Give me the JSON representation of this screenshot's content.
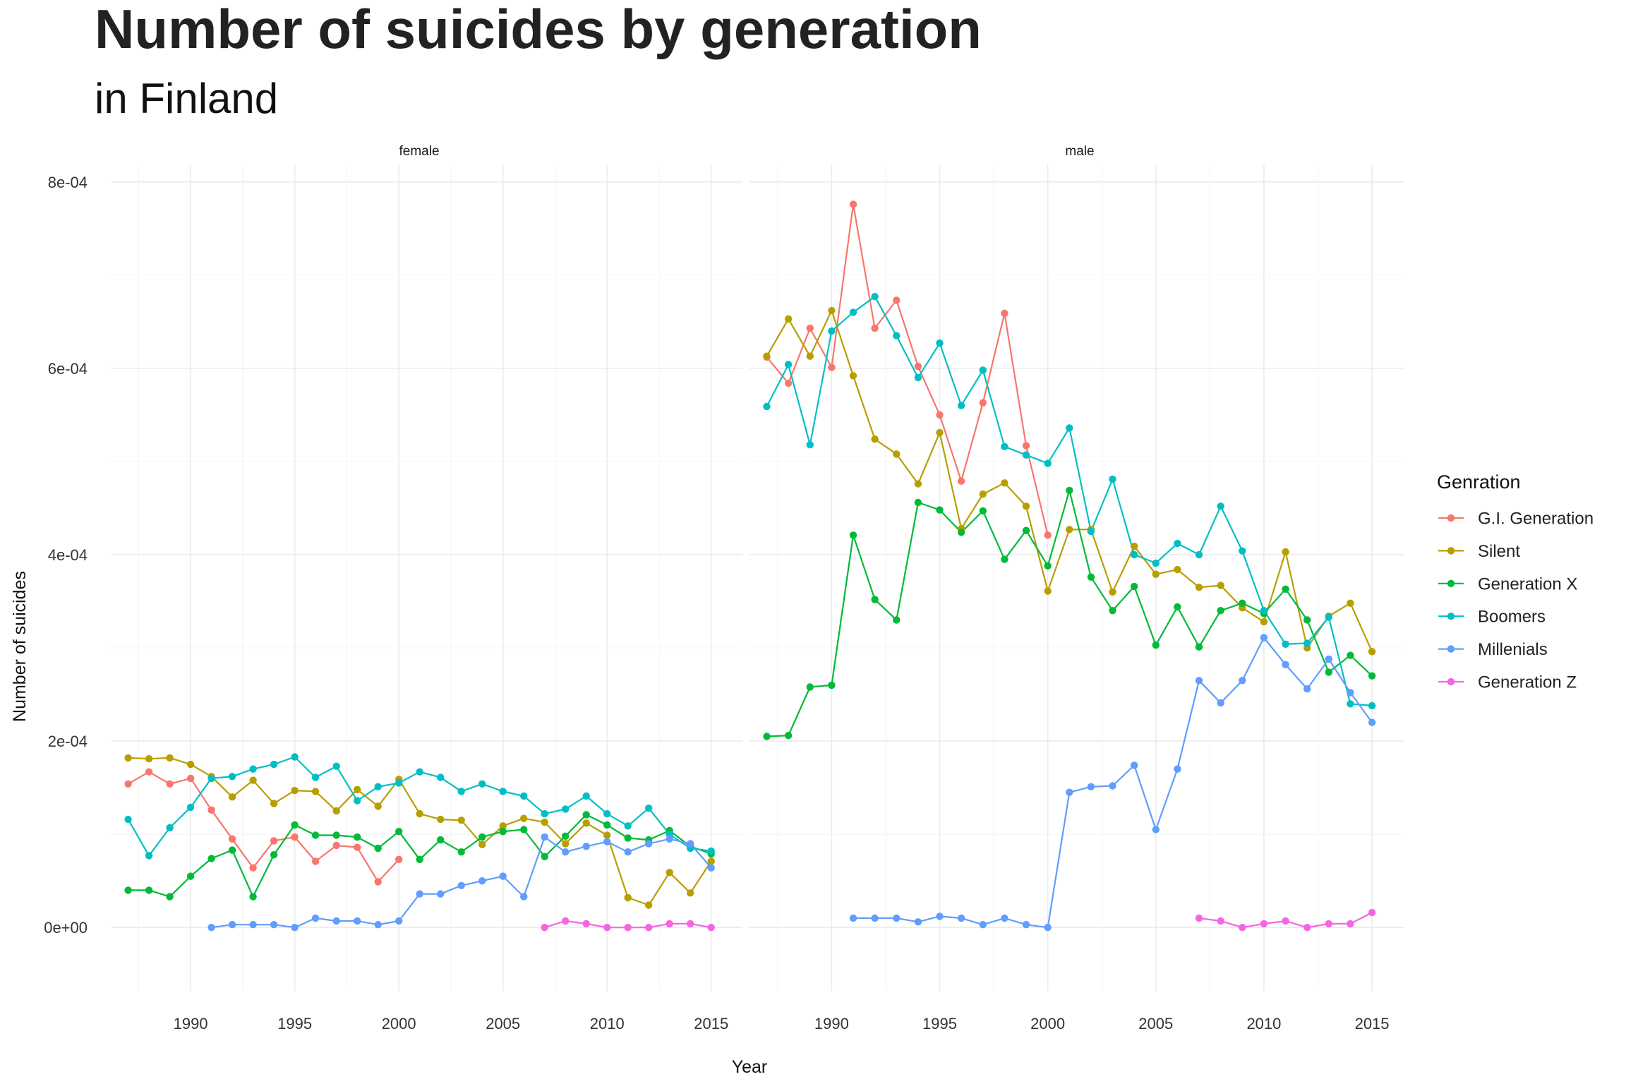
{
  "chart_data": {
    "type": "line",
    "title": "Number of suicides by generation",
    "subtitle": "in Finland",
    "xlabel": "Year",
    "ylabel": "Number of suicides",
    "legend_title": "Genration",
    "legend_position": "right",
    "grid": true,
    "xlim": [
      1986.2,
      2016.5
    ],
    "ylim": [
      -6.8e-05,
      0.000818
    ],
    "x_ticks": [
      1990,
      1995,
      2000,
      2005,
      2010,
      2015
    ],
    "x_tick_labels": [
      "1990",
      "1995",
      "2000",
      "2005",
      "2010",
      "2015"
    ],
    "y_ticks": [
      0,
      0.0002,
      0.0004,
      0.0006,
      0.0008
    ],
    "y_tick_labels": [
      "0e+00",
      "2e-04",
      "4e-04",
      "6e-04",
      "8e-04"
    ],
    "series_colors": {
      "G.I. Generation": "#F8766D",
      "Silent": "#B79F00",
      "Generation X": "#00BA38",
      "Boomers": "#00BFC4",
      "Millenials": "#619CFF",
      "Generation Z": "#F564E3"
    },
    "legend": [
      "G.I. Generation",
      "Silent",
      "Generation X",
      "Boomers",
      "Millenials",
      "Generation Z"
    ],
    "panels": [
      {
        "label": "female",
        "series": [
          {
            "name": "G.I. Generation",
            "x": [
              1987,
              1988,
              1989,
              1990,
              1991,
              1992,
              1993,
              1994,
              1995,
              1996,
              1997,
              1998,
              1999,
              2000
            ],
            "y": [
              0.000154,
              0.000167,
              0.000154,
              0.00016,
              0.000126,
              9.5e-05,
              6.4e-05,
              9.3e-05,
              9.7e-05,
              7.1e-05,
              8.8e-05,
              8.6e-05,
              4.9e-05,
              7.3e-05
            ]
          },
          {
            "name": "Silent",
            "x": [
              1987,
              1988,
              1989,
              1990,
              1991,
              1992,
              1993,
              1994,
              1995,
              1996,
              1997,
              1998,
              1999,
              2000,
              2001,
              2002,
              2003,
              2004,
              2005,
              2006,
              2007,
              2008,
              2009,
              2010,
              2011,
              2012,
              2013,
              2014,
              2015
            ],
            "y": [
              0.000182,
              0.000181,
              0.000182,
              0.000175,
              0.000162,
              0.00014,
              0.000158,
              0.000133,
              0.000147,
              0.000146,
              0.000125,
              0.000148,
              0.00013,
              0.000159,
              0.000122,
              0.000116,
              0.000115,
              8.9e-05,
              0.000109,
              0.000117,
              0.000113,
              9e-05,
              0.000112,
              9.9e-05,
              3.2e-05,
              2.4e-05,
              5.9e-05,
              3.7e-05,
              7.1e-05
            ]
          },
          {
            "name": "Generation X",
            "x": [
              1987,
              1988,
              1989,
              1990,
              1991,
              1992,
              1993,
              1994,
              1995,
              1996,
              1997,
              1998,
              1999,
              2000,
              2001,
              2002,
              2003,
              2004,
              2005,
              2006,
              2007,
              2008,
              2009,
              2010,
              2011,
              2012,
              2013,
              2014,
              2015
            ],
            "y": [
              4e-05,
              4e-05,
              3.3e-05,
              5.5e-05,
              7.4e-05,
              8.3e-05,
              3.3e-05,
              7.8e-05,
              0.00011,
              9.9e-05,
              9.9e-05,
              9.7e-05,
              8.5e-05,
              0.000103,
              7.3e-05,
              9.4e-05,
              8.1e-05,
              9.7e-05,
              0.000103,
              0.000105,
              7.6e-05,
              9.8e-05,
              0.000121,
              0.00011,
              9.6e-05,
              9.4e-05,
              0.000104,
              8.7e-05,
              7.9e-05
            ]
          },
          {
            "name": "Boomers",
            "x": [
              1987,
              1988,
              1989,
              1990,
              1991,
              1992,
              1993,
              1994,
              1995,
              1996,
              1997,
              1998,
              1999,
              2000,
              2001,
              2002,
              2003,
              2004,
              2005,
              2006,
              2007,
              2008,
              2009,
              2010,
              2011,
              2012,
              2013,
              2014,
              2015
            ],
            "y": [
              0.000116,
              7.7e-05,
              0.000107,
              0.000129,
              0.00016,
              0.000162,
              0.00017,
              0.000175,
              0.000183,
              0.000161,
              0.000173,
              0.000136,
              0.000151,
              0.000155,
              0.000167,
              0.000161,
              0.000146,
              0.000154,
              0.000146,
              0.000141,
              0.000122,
              0.000127,
              0.000141,
              0.000122,
              0.000109,
              0.000128,
              0.0001,
              8.5e-05,
              8.2e-05
            ]
          },
          {
            "name": "Millenials",
            "x": [
              1991,
              1992,
              1993,
              1994,
              1995,
              1996,
              1997,
              1998,
              1999,
              2000,
              2001,
              2002,
              2003,
              2004,
              2005,
              2006,
              2007,
              2008,
              2009,
              2010,
              2011,
              2012,
              2013,
              2014,
              2015
            ],
            "y": [
              0,
              3e-06,
              3e-06,
              3e-06,
              0,
              1e-05,
              7e-06,
              7e-06,
              3e-06,
              7e-06,
              3.6e-05,
              3.6e-05,
              4.5e-05,
              5e-05,
              5.5e-05,
              3.3e-05,
              9.7e-05,
              8.1e-05,
              8.7e-05,
              9.2e-05,
              8.1e-05,
              9e-05,
              9.5e-05,
              9e-05,
              6.4e-05
            ]
          },
          {
            "name": "Generation Z",
            "x": [
              2007,
              2008,
              2009,
              2010,
              2011,
              2012,
              2013,
              2014,
              2015
            ],
            "y": [
              0,
              7e-06,
              4e-06,
              0,
              0,
              0,
              4e-06,
              4e-06,
              0
            ]
          }
        ]
      },
      {
        "label": "male",
        "series": [
          {
            "name": "G.I. Generation",
            "x": [
              1987,
              1988,
              1989,
              1990,
              1991,
              1992,
              1993,
              1994,
              1995,
              1996,
              1997,
              1998,
              1999,
              2000
            ],
            "y": [
              0.000612,
              0.000584,
              0.000643,
              0.000601,
              0.000776,
              0.000643,
              0.000673,
              0.000602,
              0.00055,
              0.000479,
              0.000563,
              0.000659,
              0.000517,
              0.000421
            ]
          },
          {
            "name": "Silent",
            "x": [
              1987,
              1988,
              1989,
              1990,
              1991,
              1992,
              1993,
              1994,
              1995,
              1996,
              1997,
              1998,
              1999,
              2000,
              2001,
              2002,
              2003,
              2004,
              2005,
              2006,
              2007,
              2008,
              2009,
              2010,
              2011,
              2012,
              2013,
              2014,
              2015
            ],
            "y": [
              0.000613,
              0.000653,
              0.000613,
              0.000662,
              0.000592,
              0.000524,
              0.000508,
              0.000476,
              0.000531,
              0.000428,
              0.000465,
              0.000477,
              0.000452,
              0.000361,
              0.000427,
              0.000427,
              0.00036,
              0.000409,
              0.000379,
              0.000384,
              0.000365,
              0.000367,
              0.000343,
              0.000328,
              0.000403,
              0.0003,
              0.000334,
              0.000348,
              0.000296
            ]
          },
          {
            "name": "Generation X",
            "x": [
              1987,
              1988,
              1989,
              1990,
              1991,
              1992,
              1993,
              1994,
              1995,
              1996,
              1997,
              1998,
              1999,
              2000,
              2001,
              2002,
              2003,
              2004,
              2005,
              2006,
              2007,
              2008,
              2009,
              2010,
              2011,
              2012,
              2013,
              2014,
              2015
            ],
            "y": [
              0.000205,
              0.000206,
              0.000258,
              0.00026,
              0.000421,
              0.000352,
              0.00033,
              0.000456,
              0.000448,
              0.000424,
              0.000447,
              0.000395,
              0.000426,
              0.000388,
              0.000469,
              0.000376,
              0.00034,
              0.000366,
              0.000303,
              0.000344,
              0.000301,
              0.00034,
              0.000348,
              0.000337,
              0.000363,
              0.00033,
              0.000274,
              0.000292,
              0.00027
            ]
          },
          {
            "name": "Boomers",
            "x": [
              1987,
              1988,
              1989,
              1990,
              1991,
              1992,
              1993,
              1994,
              1995,
              1996,
              1997,
              1998,
              1999,
              2000,
              2001,
              2002,
              2003,
              2004,
              2005,
              2006,
              2007,
              2008,
              2009,
              2010,
              2011,
              2012,
              2013,
              2014,
              2015
            ],
            "y": [
              0.000559,
              0.000604,
              0.000518,
              0.00064,
              0.00066,
              0.000677,
              0.000635,
              0.00059,
              0.000627,
              0.00056,
              0.000598,
              0.000516,
              0.000507,
              0.000498,
              0.000536,
              0.000425,
              0.000481,
              0.0004,
              0.000391,
              0.000412,
              0.0004,
              0.000452,
              0.000404,
              0.00034,
              0.000304,
              0.000305,
              0.000333,
              0.00024,
              0.000238
            ]
          },
          {
            "name": "Millenials",
            "x": [
              1991,
              1992,
              1993,
              1994,
              1995,
              1996,
              1997,
              1998,
              1999,
              2000,
              2001,
              2002,
              2003,
              2004,
              2005,
              2006,
              2007,
              2008,
              2009,
              2010,
              2011,
              2012,
              2013,
              2014,
              2015
            ],
            "y": [
              1e-05,
              1e-05,
              1e-05,
              6e-06,
              1.2e-05,
              1e-05,
              3e-06,
              1e-05,
              3e-06,
              0,
              0.000145,
              0.000151,
              0.000152,
              0.000174,
              0.000105,
              0.00017,
              0.000265,
              0.000241,
              0.000265,
              0.000311,
              0.000282,
              0.000256,
              0.000288,
              0.000252,
              0.00022
            ]
          },
          {
            "name": "Generation Z",
            "x": [
              2007,
              2008,
              2009,
              2010,
              2011,
              2012,
              2013,
              2014,
              2015
            ],
            "y": [
              1e-05,
              7e-06,
              0,
              4e-06,
              7e-06,
              0,
              4e-06,
              4e-06,
              1.6e-05
            ]
          }
        ]
      }
    ]
  }
}
